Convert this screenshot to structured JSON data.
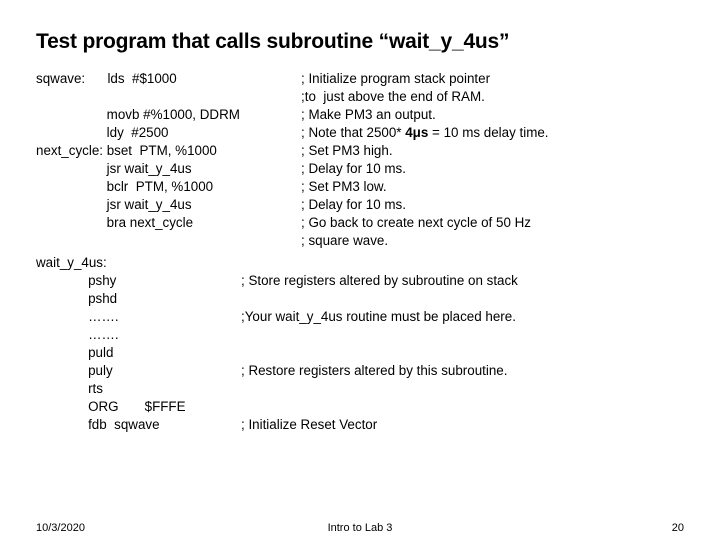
{
  "title": "Test program that calls subroutine “wait_y_4us”",
  "lines": [
    {
      "col1": "sqwave:      lds  #$1000",
      "col2": "; Initialize program stack pointer"
    },
    {
      "col1": "",
      "col2": ";to  just above the end of RAM."
    },
    {
      "col1": "                   movb #%1000, DDRM",
      "col2": "; Make PM3 an output."
    },
    {
      "col1": "                   ldy  #2500",
      "col2_pre": "; Note that 2500* ",
      "col2_bold": "4μs",
      "col2_post": " = 10 ms delay time."
    },
    {
      "col1": "next_cycle: bset  PTM, %1000",
      "col2": "; Set PM3 high."
    },
    {
      "col1": "                   jsr wait_y_4us",
      "col2": "; Delay for 10 ms."
    },
    {
      "col1": "                   bclr  PTM, %1000",
      "col2": "; Set PM3 low."
    },
    {
      "col1": "                   jsr wait_y_4us",
      "col2": "; Delay for 10 ms."
    },
    {
      "col1": "                   bra next_cycle",
      "col2": "; Go back to create next cycle of 50 Hz"
    },
    {
      "col1": "",
      "col2": "; square wave."
    }
  ],
  "lines2": [
    {
      "col1": "wait_y_4us:",
      "col2": ""
    },
    {
      "col1": "              pshy",
      "col2": "; Store registers altered by subroutine on stack"
    },
    {
      "col1": "              pshd",
      "col2": ""
    },
    {
      "col1": "              …….",
      "col2": ";Your wait_y_4us routine must be placed here."
    },
    {
      "col1": "              …….",
      "col2": ""
    },
    {
      "col1": "              puld",
      "col2": ""
    },
    {
      "col1": "              puly",
      "col2": "; Restore registers altered by this subroutine."
    },
    {
      "col1": "              rts",
      "col2": ""
    },
    {
      "col1": "              ORG       $FFFE",
      "col2": ""
    },
    {
      "col1": "              fdb  sqwave",
      "col2": "; Initialize Reset Vector"
    }
  ],
  "footer": {
    "date": "10/3/2020",
    "mid": "Intro to Lab 3",
    "page": "20"
  },
  "layout": {
    "col2_offset_block1": 265,
    "col2_offset_block2": 205
  }
}
